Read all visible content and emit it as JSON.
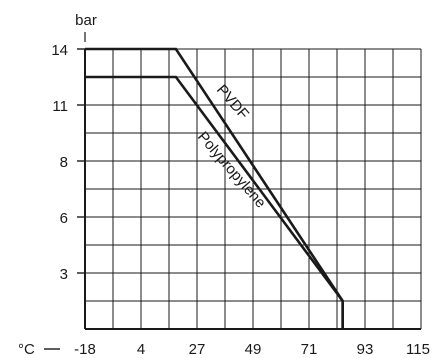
{
  "chart_data": {
    "type": "line",
    "xlabel": "°C",
    "ylabel": "bar",
    "x_ticks": [
      "-18",
      "4",
      "27",
      "49",
      "71",
      "93",
      "115"
    ],
    "y_ticks": [
      "3",
      "6",
      "8",
      "11",
      "14"
    ],
    "xlim": [
      -18,
      115
    ],
    "grid": true,
    "series": [
      {
        "name": "PVDF",
        "points": [
          [
            -18,
            14
          ],
          [
            18,
            14
          ],
          [
            84,
            1.5
          ],
          [
            84,
            0
          ]
        ]
      },
      {
        "name": "Polypropylène",
        "points": [
          [
            -18,
            12.5
          ],
          [
            18,
            12.5
          ],
          [
            84,
            1.5
          ],
          [
            84,
            0
          ]
        ]
      }
    ],
    "colors": {
      "line": "#1a1a1a",
      "grid": "#1a1a1a",
      "background": "#ffffff"
    }
  }
}
